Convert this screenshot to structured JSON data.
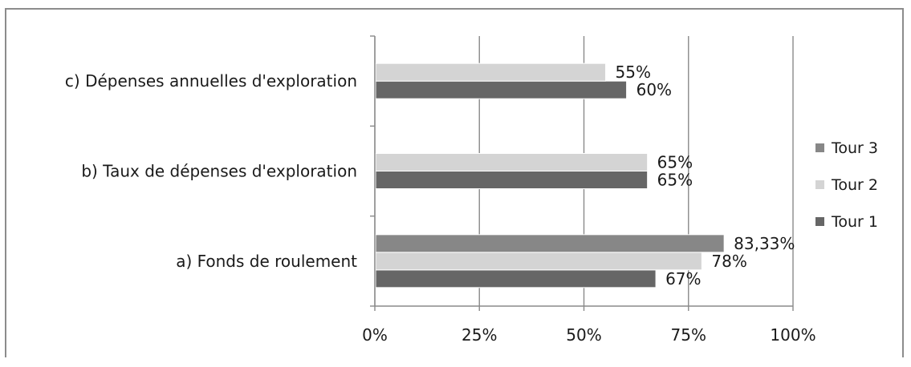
{
  "chart_data": {
    "type": "bar",
    "orientation": "horizontal",
    "categories": [
      "a) Fonds de roulement",
      "b) Taux de dépenses d'exploration",
      "c) Dépenses annuelles d'exploration"
    ],
    "series": [
      {
        "name": "Tour 1",
        "color": "#666666",
        "values": [
          67,
          65,
          60
        ],
        "labels": [
          "67%",
          "65%",
          "60%"
        ]
      },
      {
        "name": "Tour 2",
        "color": "#d4d4d4",
        "values": [
          78,
          65,
          55
        ],
        "labels": [
          "78%",
          "65%",
          "55%"
        ]
      },
      {
        "name": "Tour 3",
        "color": "#878787",
        "values": [
          83.33,
          null,
          null
        ],
        "labels": [
          "83,33%",
          "",
          ""
        ]
      }
    ],
    "xlim": [
      0,
      100
    ],
    "xticks": [
      0,
      25,
      50,
      75,
      100
    ],
    "xtick_labels": [
      "0%",
      "25%",
      "50%",
      "75%",
      "100%"
    ],
    "grid": "vertical",
    "legend": {
      "position": "right",
      "order": [
        "Tour 3",
        "Tour 2",
        "Tour 1"
      ]
    }
  }
}
